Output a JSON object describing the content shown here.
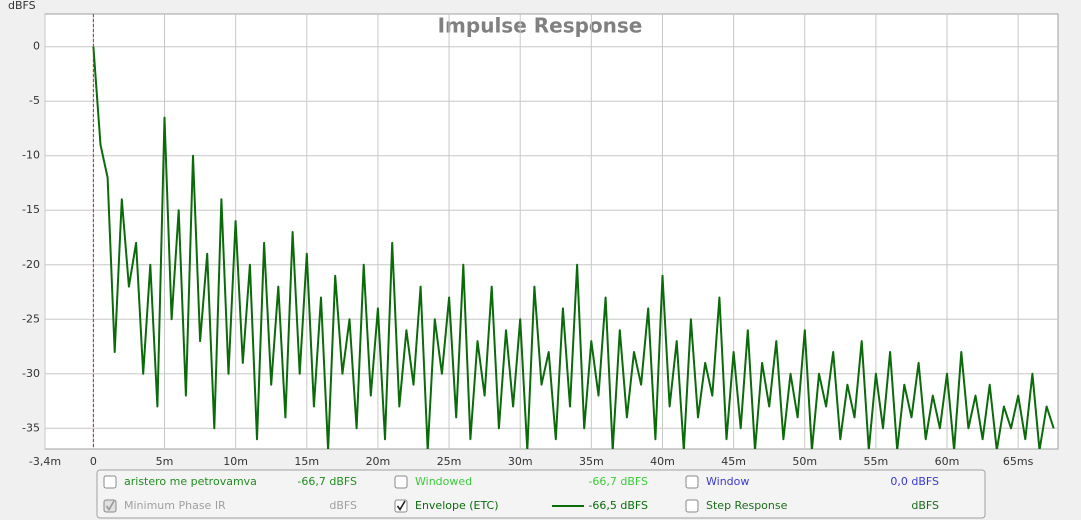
{
  "chart_data": {
    "type": "line",
    "title": "Impulse Response",
    "y_label": "dBFS",
    "xlim": [
      -3.4,
      67.8
    ],
    "ylim": [
      -36.9,
      3
    ],
    "xticks": [
      {
        "value": -3.4,
        "label": "-3,4m"
      },
      0,
      {
        "value": 5,
        "label": "5m"
      },
      {
        "value": 10,
        "label": "10m"
      },
      {
        "value": 15,
        "label": "15m"
      },
      {
        "value": 20,
        "label": "20m"
      },
      {
        "value": 25,
        "label": "25m"
      },
      {
        "value": 30,
        "label": "30m"
      },
      {
        "value": 35,
        "label": "35m"
      },
      {
        "value": 40,
        "label": "40m"
      },
      {
        "value": 45,
        "label": "45m"
      },
      {
        "value": 50,
        "label": "50m"
      },
      {
        "value": 55,
        "label": "55m"
      },
      {
        "value": 60,
        "label": "60m"
      },
      {
        "value": 65,
        "label": "65ms"
      }
    ],
    "yticks": [
      0,
      -5,
      -10,
      -15,
      -20,
      -25,
      -30,
      -35
    ],
    "grid": true,
    "marker_x": 0,
    "marker_color": "#cc2222",
    "x": [
      0,
      0.5,
      1,
      1.5,
      2,
      2.5,
      3,
      3.5,
      4,
      4.5,
      5,
      5.5,
      6,
      6.5,
      7,
      7.5,
      8,
      8.5,
      9,
      9.5,
      10,
      10.5,
      11,
      11.5,
      12,
      12.5,
      13,
      13.5,
      14,
      14.5,
      15,
      15.5,
      16,
      16.5,
      17,
      17.5,
      18,
      18.5,
      19,
      19.5,
      20,
      20.5,
      21,
      21.5,
      22,
      22.5,
      23,
      23.5,
      24,
      24.5,
      25,
      25.5,
      26,
      26.5,
      27,
      27.5,
      28,
      28.5,
      29,
      29.5,
      30,
      30.5,
      31,
      31.5,
      32,
      32.5,
      33,
      33.5,
      34,
      34.5,
      35,
      35.5,
      36,
      36.5,
      37,
      37.5,
      38,
      38.5,
      39,
      39.5,
      40,
      40.5,
      41,
      41.5,
      42,
      42.5,
      43,
      43.5,
      44,
      44.5,
      45,
      45.5,
      46,
      46.5,
      47,
      47.5,
      48,
      48.5,
      49,
      49.5,
      50,
      50.5,
      51,
      51.5,
      52,
      52.5,
      53,
      53.5,
      54,
      54.5,
      55,
      55.5,
      56,
      56.5,
      57,
      57.5,
      58,
      58.5,
      59,
      59.5,
      60,
      60.5,
      61,
      61.5,
      62,
      62.5,
      63,
      63.5,
      64,
      64.5,
      65,
      65.5,
      66,
      66.5,
      67,
      67.5
    ],
    "series": [
      {
        "color": "#0b6b0b",
        "values": [
          0,
          -9,
          -12,
          -28,
          -14,
          -22,
          -18,
          -30,
          -20,
          -33,
          -6.5,
          -25,
          -15,
          -32,
          -10,
          -27,
          -19,
          -35,
          -14,
          -30,
          -16,
          -29,
          -20,
          -36,
          -18,
          -31,
          -22,
          -34,
          -17,
          -30,
          -19,
          -33,
          -23,
          -37,
          -21,
          -30,
          -25,
          -35,
          -20,
          -32,
          -24,
          -36,
          -18,
          -33,
          -26,
          -31,
          -22,
          -37,
          -25,
          -30,
          -23,
          -34,
          -20,
          -36,
          -27,
          -32,
          -22,
          -35,
          -26,
          -33,
          -25,
          -37,
          -22,
          -31,
          -28,
          -36,
          -24,
          -33,
          -20,
          -35,
          -27,
          -32,
          -23,
          -37,
          -26,
          -34,
          -28,
          -31,
          -24,
          -36,
          -21,
          -33,
          -27,
          -37,
          -25,
          -34,
          -29,
          -32,
          -23,
          -36,
          -28,
          -35,
          -26,
          -37,
          -29,
          -33,
          -27,
          -36,
          -30,
          -34,
          -26,
          -37,
          -30,
          -33,
          -28,
          -36,
          -31,
          -34,
          -27,
          -37,
          -30,
          -35,
          -28,
          -37,
          -31,
          -34,
          -29,
          -36,
          -32,
          -35,
          -30,
          -37,
          -28,
          -35,
          -32,
          -36,
          -31,
          -37,
          -33,
          -35,
          -32,
          -36,
          -30,
          -37,
          -33,
          -35
        ]
      }
    ],
    "legend": [
      {
        "label": "aristero me petrovamva",
        "value": "-66,7 dBFS",
        "color": "#1f8f1f",
        "checked": false
      },
      {
        "label": "Windowed",
        "value": "-66,7 dBFS",
        "color": "#3ccc3c",
        "checked": false
      },
      {
        "label": "Window",
        "value": "0,0 dBFS",
        "color": "#3a3ad0",
        "checked": false
      },
      {
        "label": "Minimum Phase IR",
        "value": "dBFS",
        "color": "#a0a0a0",
        "checked": true,
        "disabled": true
      },
      {
        "label": "Envelope (ETC)",
        "value": "-66,5 dBFS",
        "color": "#0b6b0b",
        "checked": true,
        "series": 0
      },
      {
        "label": "Step Response",
        "value": "dBFS",
        "color": "#1a6e1a",
        "checked": false
      }
    ]
  }
}
